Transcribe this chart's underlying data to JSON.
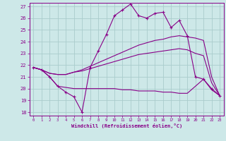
{
  "xlabel": "Windchill (Refroidissement éolien,°C)",
  "xlim": [
    -0.5,
    23.5
  ],
  "ylim": [
    17.7,
    27.3
  ],
  "xticks": [
    0,
    1,
    2,
    3,
    4,
    5,
    6,
    7,
    8,
    9,
    10,
    11,
    12,
    13,
    14,
    15,
    16,
    17,
    18,
    19,
    20,
    21,
    22,
    23
  ],
  "yticks": [
    18,
    19,
    20,
    21,
    22,
    23,
    24,
    25,
    26,
    27
  ],
  "background_color": "#cde8e8",
  "line_color": "#880088",
  "grid_color": "#aacccc",
  "lines": [
    {
      "x": [
        0,
        1,
        2,
        3,
        4,
        5,
        6,
        7,
        8,
        9,
        10,
        11,
        12,
        13,
        14,
        15,
        16,
        17,
        18,
        19,
        20,
        21,
        22,
        23
      ],
      "y": [
        21.8,
        21.6,
        21.0,
        20.2,
        20.1,
        20.0,
        20.0,
        20.0,
        20.0,
        20.0,
        20.0,
        19.9,
        19.9,
        19.8,
        19.8,
        19.8,
        19.7,
        19.7,
        19.6,
        19.6,
        20.2,
        20.8,
        19.9,
        19.4
      ],
      "marker": null,
      "lw": 0.8
    },
    {
      "x": [
        0,
        1,
        2,
        3,
        4,
        5,
        6,
        7,
        8,
        9,
        10,
        11,
        12,
        13,
        14,
        15,
        16,
        17,
        18,
        19,
        20,
        21,
        22,
        23
      ],
      "y": [
        21.8,
        21.6,
        21.3,
        21.2,
        21.2,
        21.4,
        21.5,
        21.7,
        21.9,
        22.1,
        22.3,
        22.5,
        22.7,
        22.9,
        23.0,
        23.1,
        23.2,
        23.3,
        23.4,
        23.3,
        23.0,
        22.8,
        20.5,
        19.4
      ],
      "marker": null,
      "lw": 0.8
    },
    {
      "x": [
        0,
        1,
        2,
        3,
        4,
        5,
        6,
        7,
        8,
        9,
        10,
        11,
        12,
        13,
        14,
        15,
        16,
        17,
        18,
        19,
        20,
        21,
        22,
        23
      ],
      "y": [
        21.8,
        21.6,
        21.3,
        21.2,
        21.2,
        21.4,
        21.6,
        21.9,
        22.2,
        22.5,
        22.8,
        23.1,
        23.4,
        23.7,
        23.9,
        24.1,
        24.2,
        24.4,
        24.5,
        24.4,
        24.3,
        24.1,
        21.0,
        19.4
      ],
      "marker": null,
      "lw": 0.8
    },
    {
      "x": [
        0,
        1,
        2,
        3,
        4,
        5,
        6,
        7,
        8,
        9,
        10,
        11,
        12,
        13,
        14,
        15,
        16,
        17,
        18,
        19,
        20,
        21,
        22,
        23
      ],
      "y": [
        21.8,
        21.6,
        21.0,
        20.2,
        19.7,
        19.3,
        18.0,
        21.8,
        23.2,
        24.6,
        26.2,
        26.7,
        27.2,
        26.2,
        26.0,
        26.4,
        26.5,
        25.2,
        25.8,
        24.5,
        21.0,
        20.8,
        20.0,
        19.4
      ],
      "marker": "+",
      "lw": 0.8
    }
  ]
}
